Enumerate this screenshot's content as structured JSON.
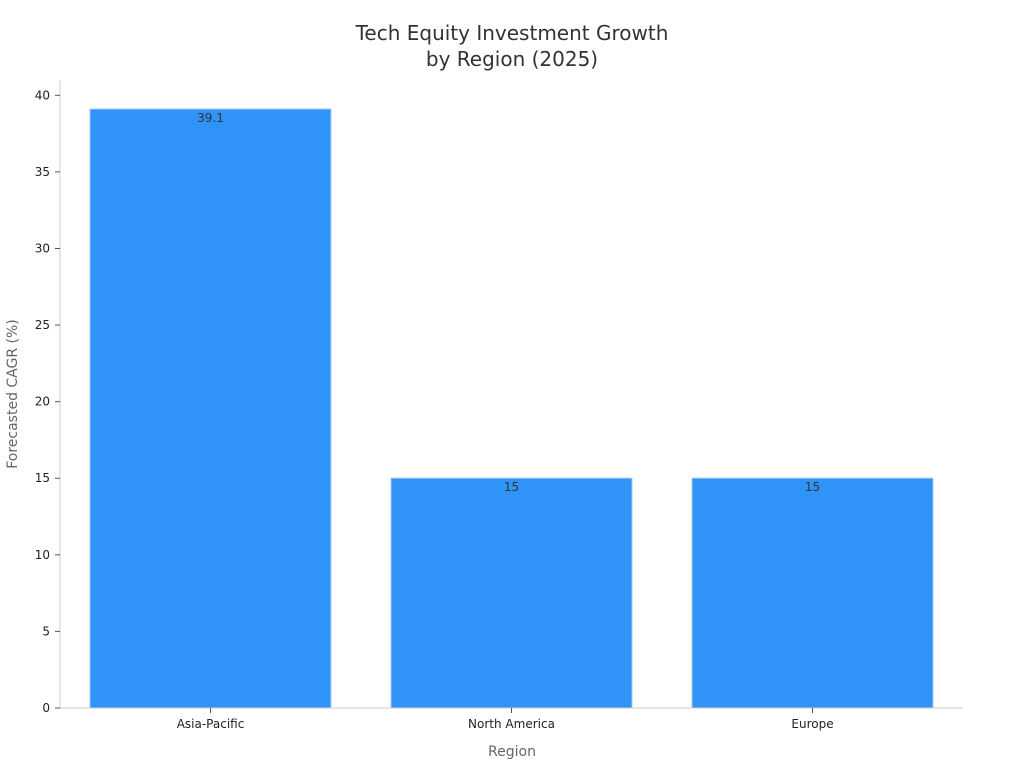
{
  "chart_data": {
    "type": "bar",
    "title_lines": [
      "Tech Equity Investment Growth",
      "by Region (2025)"
    ],
    "xlabel": "Region",
    "ylabel": "Forecasted CAGR (%)",
    "categories": [
      "Asia-Pacific",
      "North America",
      "Europe"
    ],
    "values": [
      39.1,
      15,
      15
    ],
    "value_labels": [
      "39.1",
      "15",
      "15"
    ],
    "ylim": [
      0,
      41
    ],
    "yticks": [
      0,
      5,
      10,
      15,
      20,
      25,
      30,
      35,
      40
    ],
    "ytick_labels": [
      "0",
      "5",
      "10",
      "15",
      "20",
      "25",
      "30",
      "35",
      "40"
    ],
    "grid": false,
    "legend": "none",
    "bar_color": "#2f93f7",
    "axis_color": "#cccccc"
  }
}
